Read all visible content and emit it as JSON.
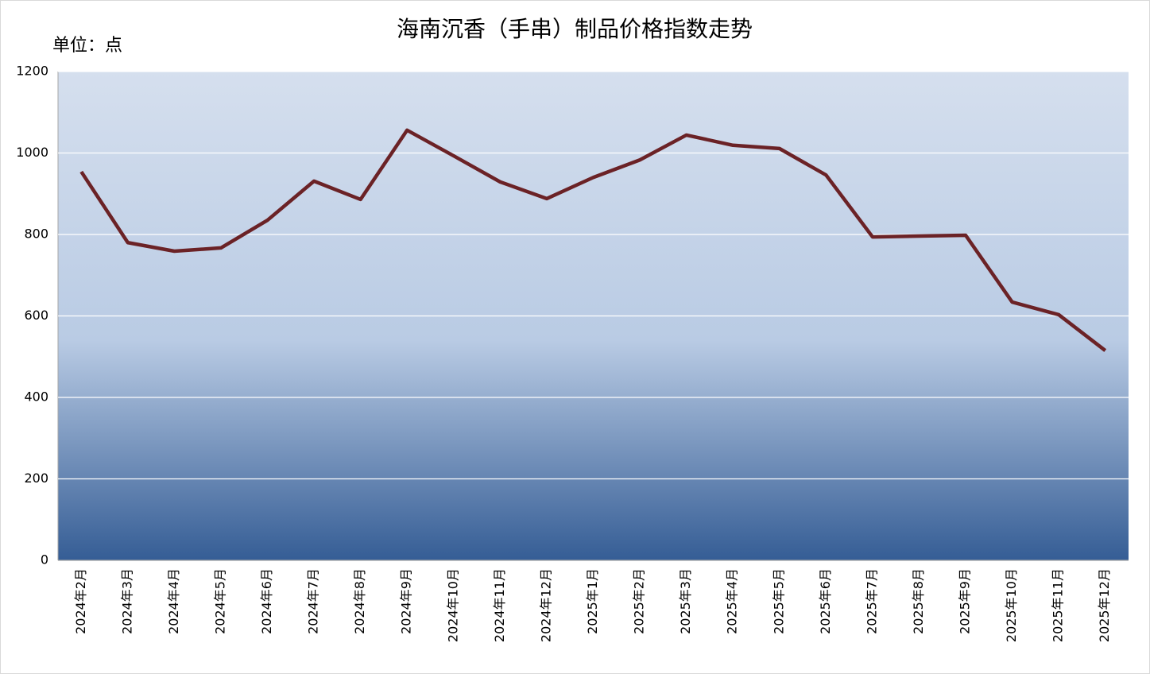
{
  "chart_data": {
    "type": "line",
    "title": "海南沉香（手串）制品价格指数走势",
    "unit_label": "单位：点",
    "categories": [
      "2024年2月",
      "2024年3月",
      "2024年4月",
      "2024年5月",
      "2024年6月",
      "2024年7月",
      "2024年8月",
      "2024年9月",
      "2024年10月",
      "2024年11月",
      "2024年12月",
      "2025年1月",
      "2025年2月",
      "2025年3月",
      "2025年4月",
      "2025年5月",
      "2025年6月",
      "2025年7月",
      "2025年8月",
      "2025年9月",
      "2025年10月",
      "2025年11月",
      "2025年12月"
    ],
    "series": [
      {
        "color": "#6b2226",
        "values": [
          954,
          780,
          759,
          767,
          835,
          931,
          886,
          1056,
          993,
          929,
          888,
          940,
          983,
          1044,
          1019,
          1011,
          946,
          794,
          796,
          798,
          634,
          603,
          515
        ]
      }
    ],
    "ylim": [
      0,
      1200
    ],
    "yticks": [
      0,
      200,
      400,
      600,
      800,
      1000,
      1200
    ],
    "grid": true
  }
}
